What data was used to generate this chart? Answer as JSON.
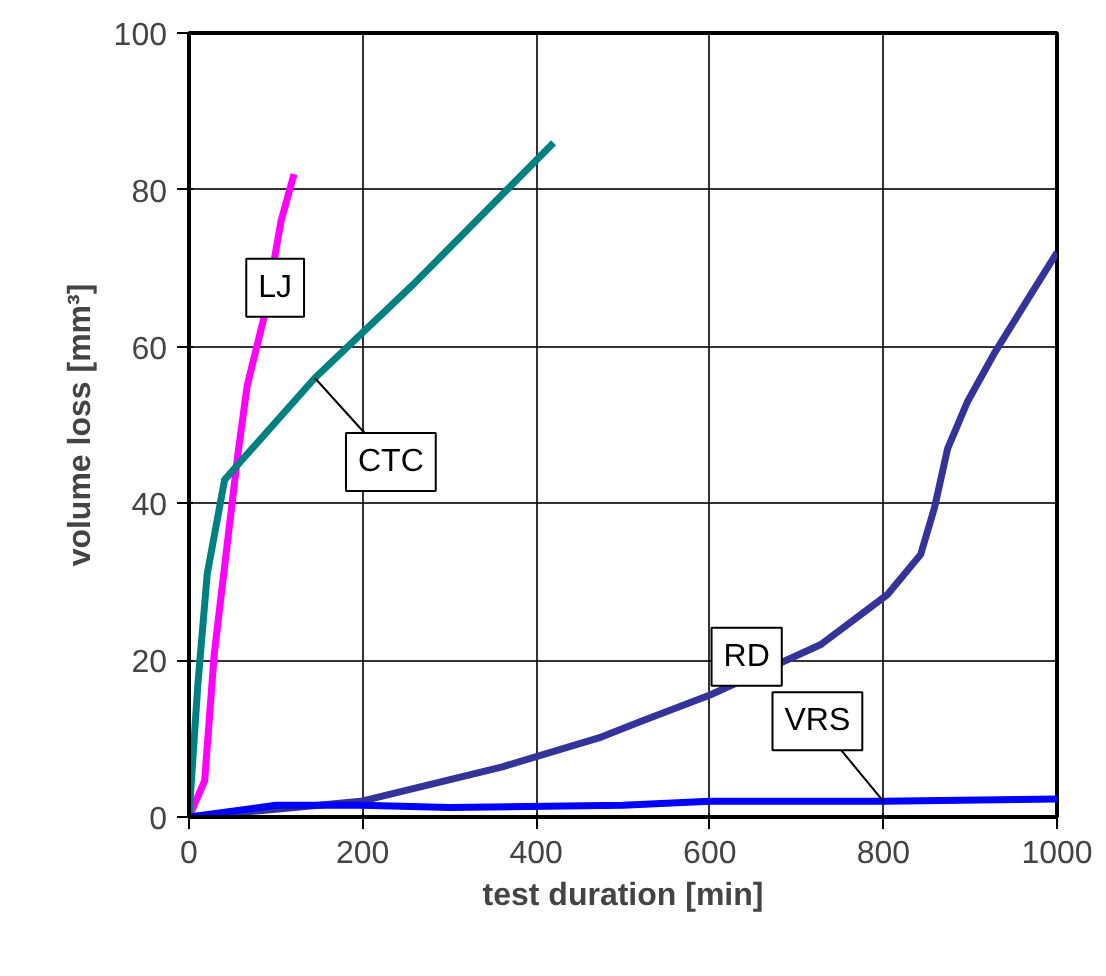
{
  "chart_data": {
    "type": "line",
    "xlabel": "test duration [min]",
    "ylabel": "volume loss [mm³]",
    "xlim": [
      0,
      1000
    ],
    "ylim": [
      0,
      100
    ],
    "xticks": [
      0,
      200,
      400,
      600,
      800,
      1000
    ],
    "yticks": [
      0,
      20,
      40,
      60,
      80,
      100
    ],
    "grid": true,
    "marker": "none",
    "line_style": "solid",
    "series": [
      {
        "name": "LJ",
        "color": "#ff00ff",
        "x": [
          0,
          18,
          29,
          56,
          67,
          87,
          106,
          121
        ],
        "values": [
          0,
          4.6,
          20.7,
          46,
          55,
          64,
          76,
          82
        ]
      },
      {
        "name": "CTC",
        "color": "#008080",
        "x": [
          0,
          10,
          21,
          41,
          60,
          145,
          259,
          420
        ],
        "values": [
          0,
          16.6,
          31,
          43,
          45.4,
          56,
          68,
          86
        ]
      },
      {
        "name": "RD",
        "color": "#333399",
        "x": [
          0,
          100,
          198,
          361,
          475,
          521,
          601,
          728,
          805,
          843,
          859,
          874,
          897,
          927,
          965,
          1000
        ],
        "values": [
          0,
          1,
          2,
          6.4,
          10.2,
          12.2,
          15.6,
          22,
          28.4,
          33.5,
          39.5,
          47,
          53,
          59,
          65.8,
          72
        ]
      },
      {
        "name": "VRS",
        "color": "#0000ff",
        "x": [
          0,
          100,
          200,
          300,
          500,
          600,
          800,
          1000
        ],
        "values": [
          0,
          1.5,
          1.5,
          1.2,
          1.5,
          2,
          2,
          2.3
        ]
      }
    ]
  }
}
